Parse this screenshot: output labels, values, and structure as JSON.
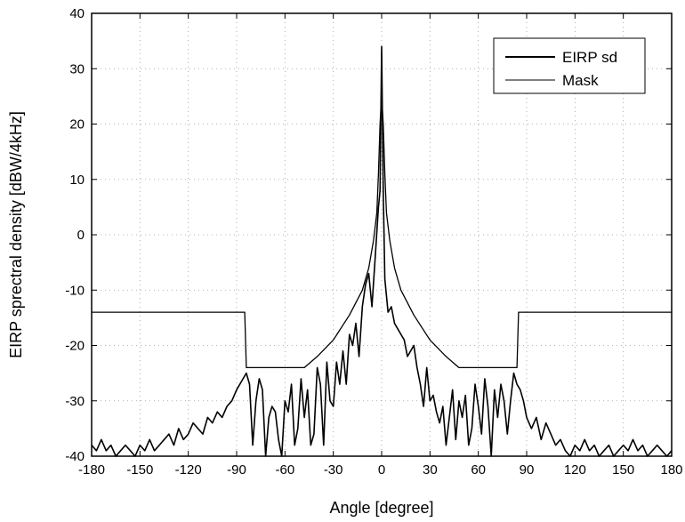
{
  "chart_data": {
    "type": "line",
    "title": "",
    "xlabel": "Angle [degree]",
    "ylabel": "EIRP sprectral density [dBW/4kHz]",
    "xlim": [
      -180,
      180
    ],
    "ylim": [
      -40,
      40
    ],
    "xticks": [
      -180,
      -150,
      -120,
      -90,
      -60,
      -30,
      0,
      30,
      60,
      90,
      120,
      150,
      180
    ],
    "yticks": [
      -40,
      -30,
      -20,
      -10,
      0,
      10,
      20,
      30,
      40
    ],
    "grid": true,
    "legend_position": "top-right",
    "series": [
      {
        "name": "EIRP sd",
        "x": [
          -180,
          -177,
          -174,
          -171,
          -168,
          -165,
          -162,
          -159,
          -156,
          -153,
          -150,
          -147,
          -144,
          -141,
          -138,
          -135,
          -132,
          -129,
          -126,
          -123,
          -120,
          -117,
          -114,
          -111,
          -108,
          -105,
          -102,
          -99,
          -96,
          -93,
          -90,
          -88,
          -86,
          -84,
          -82,
          -80,
          -78,
          -76,
          -74,
          -72,
          -70,
          -68,
          -66,
          -64,
          -62,
          -60,
          -58,
          -56,
          -54,
          -52,
          -50,
          -48,
          -46,
          -44,
          -42,
          -40,
          -38,
          -36,
          -34,
          -32,
          -30,
          -28,
          -26,
          -24,
          -22,
          -20,
          -18,
          -16,
          -14,
          -12,
          -10,
          -8,
          -6,
          -4,
          -2,
          -1,
          0,
          1,
          2,
          4,
          6,
          8,
          10,
          12,
          14,
          16,
          18,
          20,
          22,
          24,
          26,
          28,
          30,
          32,
          34,
          36,
          38,
          40,
          42,
          44,
          46,
          48,
          50,
          52,
          54,
          56,
          58,
          60,
          62,
          64,
          66,
          68,
          70,
          72,
          74,
          76,
          78,
          80,
          82,
          84,
          86,
          88,
          90,
          93,
          96,
          99,
          102,
          105,
          108,
          111,
          114,
          117,
          120,
          123,
          126,
          129,
          132,
          135,
          138,
          141,
          144,
          147,
          150,
          153,
          156,
          159,
          162,
          165,
          168,
          171,
          174,
          177,
          180
        ],
        "y": [
          -38,
          -39,
          -37,
          -39,
          -38,
          -40,
          -39,
          -38,
          -39,
          -40,
          -38,
          -39,
          -37,
          -39,
          -38,
          -37,
          -36,
          -38,
          -35,
          -37,
          -36,
          -34,
          -35,
          -36,
          -33,
          -34,
          -32,
          -33,
          -31,
          -30,
          -28,
          -27,
          -26,
          -25,
          -27,
          -38,
          -30,
          -26,
          -28,
          -40,
          -33,
          -31,
          -32,
          -37,
          -40,
          -30,
          -32,
          -27,
          -38,
          -35,
          -26,
          -33,
          -28,
          -38,
          -36,
          -24,
          -27,
          -38,
          -23,
          -30,
          -31,
          -23,
          -27,
          -21,
          -27,
          -18,
          -20,
          -16,
          -22,
          -13,
          -9,
          -7,
          -13,
          -4,
          5,
          8,
          34,
          8,
          -8,
          -14,
          -13,
          -16,
          -17,
          -18,
          -19,
          -22,
          -21,
          -20,
          -24,
          -27,
          -31,
          -24,
          -30,
          -29,
          -32,
          -34,
          -31,
          -38,
          -33,
          -28,
          -37,
          -30,
          -33,
          -29,
          -38,
          -35,
          -27,
          -31,
          -36,
          -26,
          -31,
          -40,
          -28,
          -33,
          -27,
          -30,
          -36,
          -30,
          -25,
          -27,
          -28,
          -30,
          -33,
          -35,
          -33,
          -37,
          -34,
          -36,
          -38,
          -37,
          -39,
          -40,
          -38,
          -39,
          -37,
          -39,
          -38,
          -40,
          -39,
          -38,
          -40,
          -39,
          -38,
          -39,
          -37,
          -39,
          -38,
          -40,
          -39,
          -38,
          -39,
          -40,
          -39
        ],
        "color": "#000000"
      },
      {
        "name": "Mask",
        "x": [
          -180,
          -85,
          -84,
          -48,
          -40,
          -30,
          -20,
          -12,
          -8,
          -5,
          -3,
          -2,
          -1,
          0,
          1,
          2,
          3,
          5,
          8,
          12,
          20,
          30,
          40,
          48,
          84,
          85,
          180
        ],
        "y": [
          -14,
          -14,
          -24,
          -24,
          -22,
          -19,
          -14.5,
          -10,
          -6,
          -1,
          4,
          11,
          20,
          25,
          20,
          11,
          4,
          -1,
          -6,
          -10,
          -14.5,
          -19,
          -22,
          -24,
          -24,
          -14,
          -14
        ],
        "color": "#000000"
      }
    ]
  }
}
